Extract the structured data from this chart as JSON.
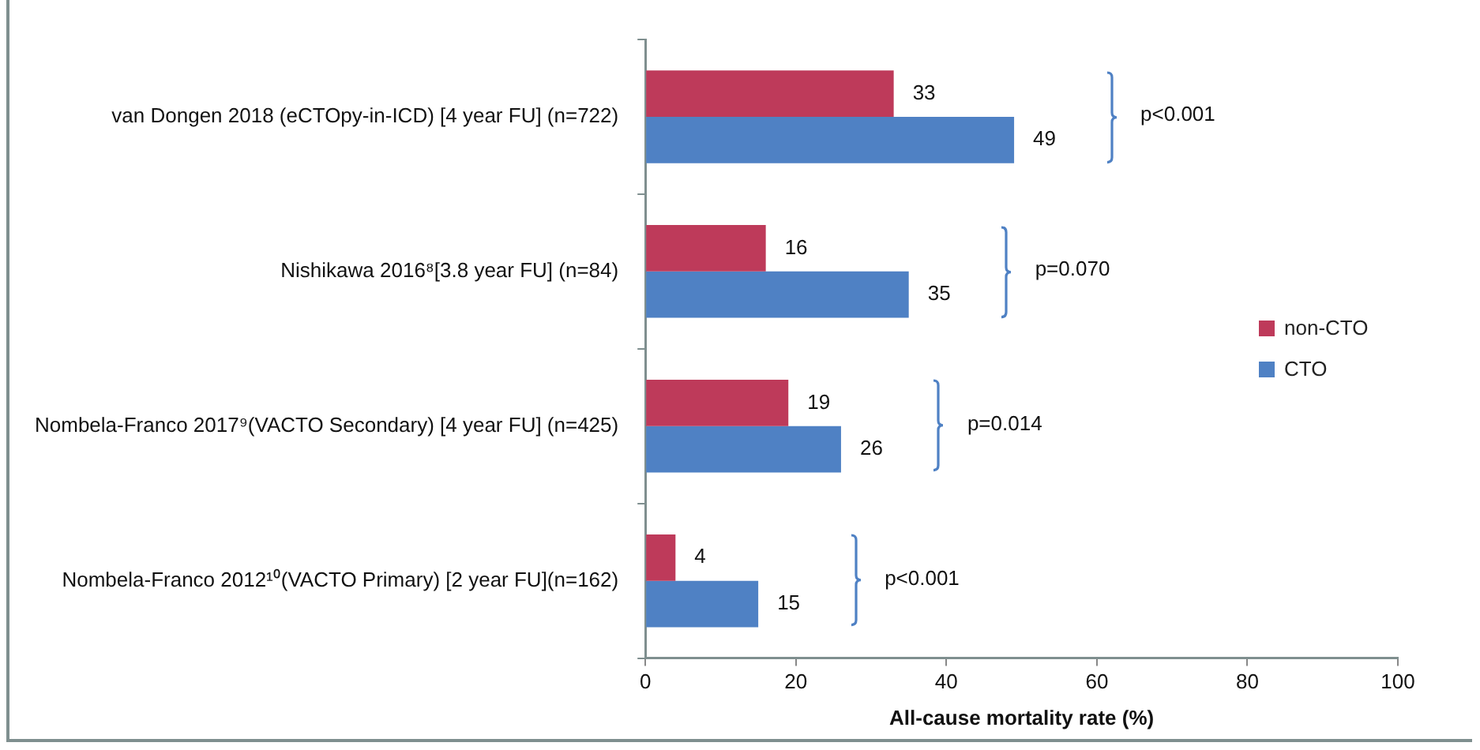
{
  "chart_data": {
    "type": "bar",
    "orientation": "horizontal",
    "xlabel": "All-cause mortality rate (%)",
    "categories": [
      "van Dongen 2018 (eCTOpy-in-ICD) [4 year FU] (n=722)",
      "Nishikawa 2016⁸[3.8 year FU] (n=84)",
      "Nombela-Franco 2017⁹(VACTO Secondary) [4 year FU] (n=425)",
      "Nombela-Franco 2012¹⁰(VACTO Primary) [2 year FU](n=162)"
    ],
    "series": [
      {
        "name": "non-CTO",
        "color": "#be3a5a",
        "values": [
          33,
          16,
          19,
          4
        ]
      },
      {
        "name": "CTO",
        "color": "#4f81c4",
        "values": [
          49,
          35,
          26,
          15
        ]
      }
    ],
    "xlim": [
      0,
      100
    ],
    "xticks": [
      0,
      20,
      40,
      60,
      80,
      100
    ],
    "grid": false,
    "legend": "right",
    "data_labels": true,
    "annotations": [
      "p<0.001",
      "p=0.070",
      "p=0.014",
      "p<0.001"
    ]
  }
}
